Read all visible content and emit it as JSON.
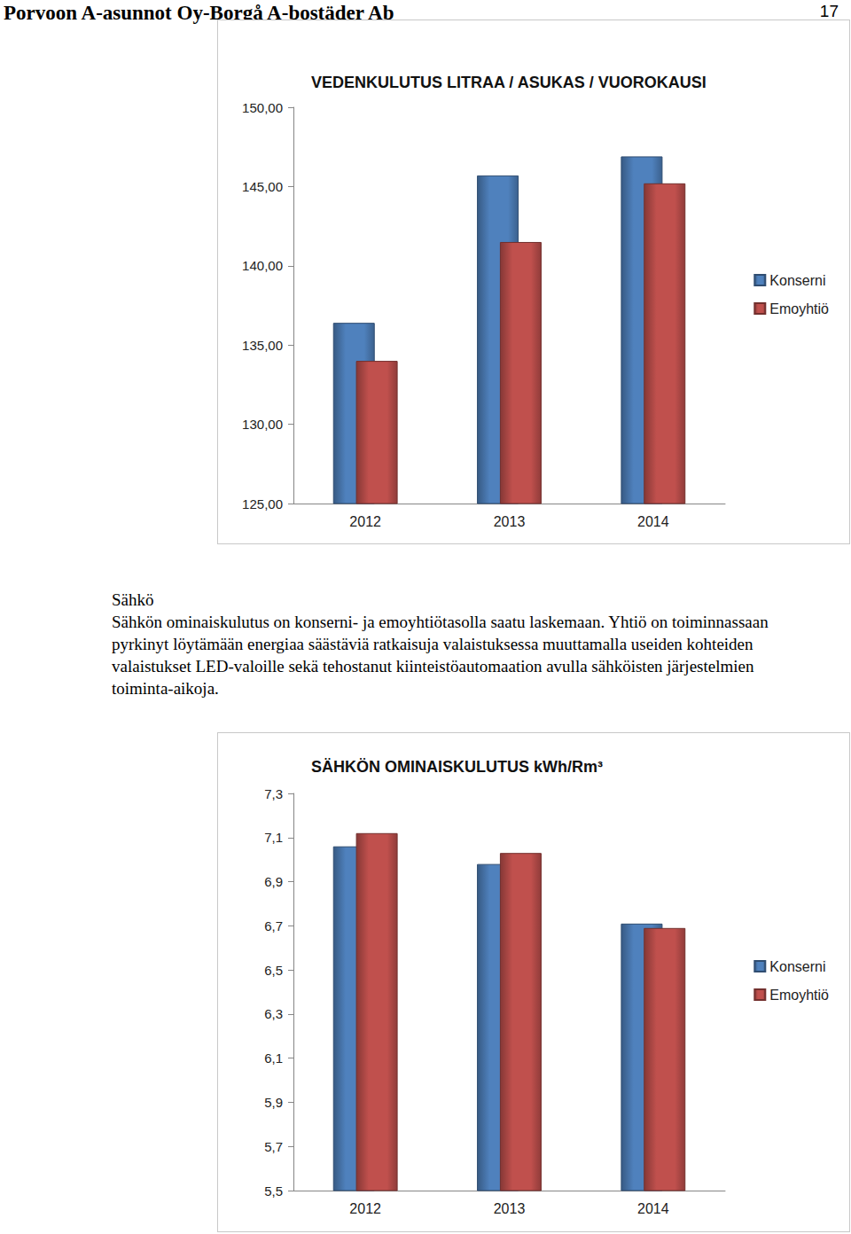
{
  "header": {
    "title": "Porvoon A-asunnot Oy-Borgå A-bostäder Ab",
    "page_number": "17"
  },
  "section": {
    "heading": "Sähkö",
    "text": "Sähkön ominaiskulutus on konserni- ja emoyhtiötasolla saatu laskemaan. Yhtiö on toiminnassaan pyrkinyt löytämään energiaa säästäviä ratkaisuja valaistuksessa muuttamalla useiden kohteiden valaistukset LED-valoille sekä tehostanut kiinteistöautomaation avulla sähköisten järjestelmien toiminta-aikoja."
  },
  "chart_data": [
    {
      "type": "bar",
      "title": "VEDENKULUTUS LITRAA / ASUKAS / VUOROKAUSI",
      "categories": [
        "2012",
        "2013",
        "2014"
      ],
      "series": [
        {
          "name": "Konserni",
          "color": "#4f81bd",
          "values": [
            136.4,
            145.7,
            146.9
          ]
        },
        {
          "name": "Emoyhtiö",
          "color": "#c0504d",
          "values": [
            134.0,
            141.5,
            145.2
          ]
        }
      ],
      "ylim": [
        125,
        150
      ],
      "yticks": [
        {
          "value": 125,
          "label": "125,00"
        },
        {
          "value": 130,
          "label": "130,00"
        },
        {
          "value": 135,
          "label": "135,00"
        },
        {
          "value": 140,
          "label": "140,00"
        },
        {
          "value": 145,
          "label": "145,00"
        },
        {
          "value": 150,
          "label": "150,00"
        }
      ],
      "grid": false,
      "legend": "right"
    },
    {
      "type": "bar",
      "title": "SÄHKÖN OMINAISKULUTUS kWh/Rm³",
      "categories": [
        "2012",
        "2013",
        "2014"
      ],
      "series": [
        {
          "name": "Konserni",
          "color": "#4f81bd",
          "values": [
            7.06,
            6.98,
            6.71
          ]
        },
        {
          "name": "Emoyhtiö",
          "color": "#c0504d",
          "values": [
            7.12,
            7.03,
            6.69
          ]
        }
      ],
      "ylim": [
        5.5,
        7.3
      ],
      "yticks": [
        {
          "value": 5.5,
          "label": "5,5"
        },
        {
          "value": 5.7,
          "label": "5,7"
        },
        {
          "value": 5.9,
          "label": "5,9"
        },
        {
          "value": 6.1,
          "label": "6,1"
        },
        {
          "value": 6.3,
          "label": "6,3"
        },
        {
          "value": 6.5,
          "label": "6,5"
        },
        {
          "value": 6.7,
          "label": "6,7"
        },
        {
          "value": 6.9,
          "label": "6,9"
        },
        {
          "value": 7.1,
          "label": "7,1"
        },
        {
          "value": 7.3,
          "label": "7,3"
        }
      ],
      "grid": false,
      "legend": "right"
    }
  ]
}
